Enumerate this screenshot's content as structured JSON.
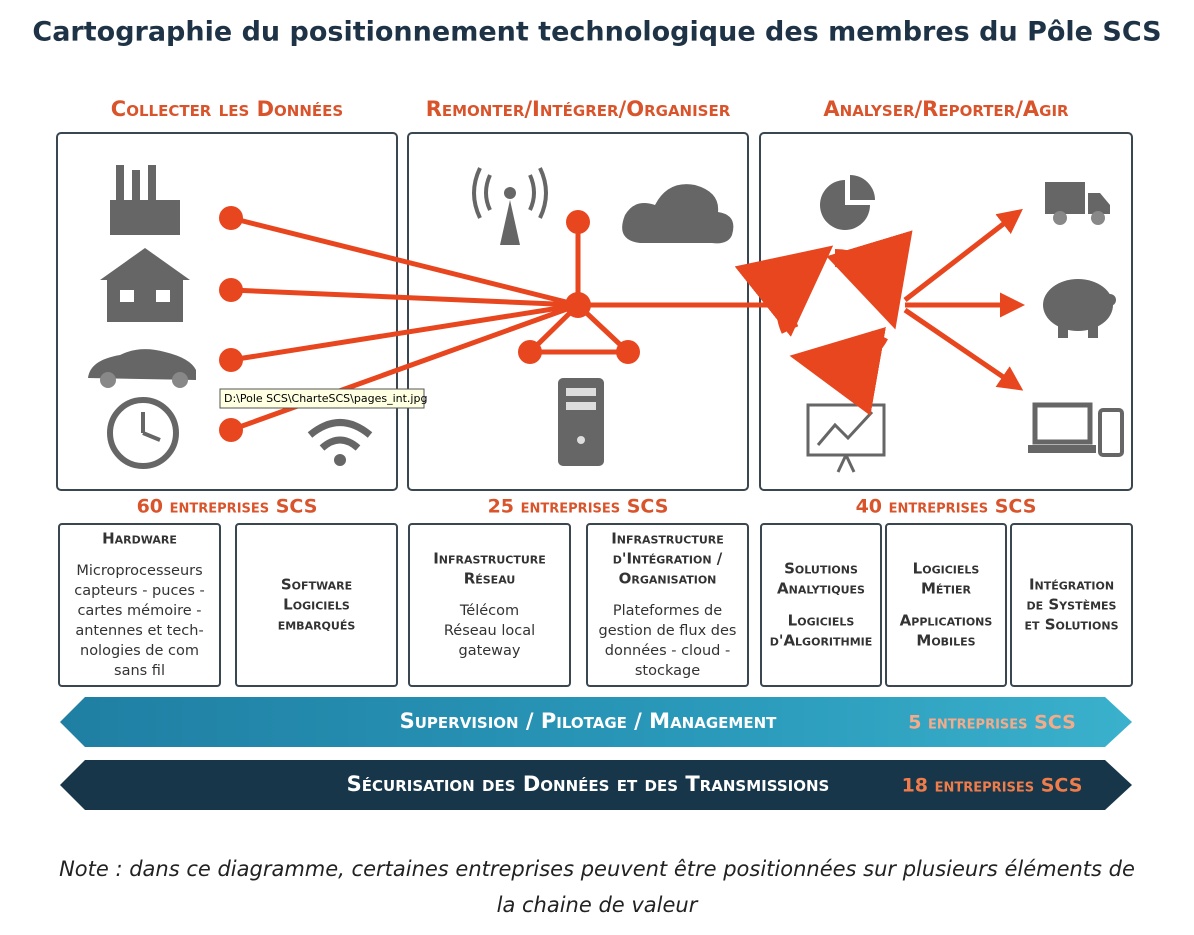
{
  "title": "Cartographie du positionnement technologique des membres du Pôle SCS",
  "columns": [
    {
      "heading": "Collecter les Données",
      "count_label": "60 entreprises SCS"
    },
    {
      "heading": "Remonter/Intégrer/Organiser",
      "count_label": "25 entreprises SCS"
    },
    {
      "heading": "Analyser/Reporter/Agir",
      "count_label": "40 entreprises SCS"
    }
  ],
  "tooltip": "D:\\Pole SCS\\CharteSCS\\pages_int.jpg",
  "boxes": [
    {
      "headings": [
        [
          "Hardware"
        ]
      ],
      "body": [
        "Microprocesseurs",
        "capteurs - puces -",
        "cartes mémoire -",
        "antennes et tech-",
        "nologies de com",
        "sans fil"
      ]
    },
    {
      "headings": [
        [
          "Software",
          "Logiciels",
          "embarqués"
        ]
      ]
    },
    {
      "headings": [
        [
          "Infrastructure",
          "Réseau"
        ]
      ],
      "body": [
        "Télécom",
        "Réseau local",
        "gateway"
      ]
    },
    {
      "headings": [
        [
          "Infrastructure",
          "d'Intégration /",
          "Organisation"
        ]
      ],
      "body": [
        "Plateformes de",
        "gestion de flux des",
        "données - cloud -",
        "stockage"
      ]
    },
    {
      "headings": [
        [
          "Solutions",
          "Analytiques"
        ],
        [
          "Logiciels",
          "d'Algorithmie"
        ]
      ]
    },
    {
      "headings": [
        [
          "Logiciels",
          "Métier"
        ],
        [
          "Applications",
          "Mobiles"
        ]
      ]
    },
    {
      "headings": [
        [
          "Intégration",
          "de Systèmes",
          "et Solutions"
        ]
      ]
    }
  ],
  "bands": [
    {
      "label": "Supervision / Pilotage / Management",
      "count_label": "5 entreprises SCS"
    },
    {
      "label": "Sécurisation des Données et des Transmissions",
      "count_label": "18 entreprises SCS"
    }
  ],
  "note": [
    "Note : dans ce diagramme, certaines entreprises peuvent être positionnées sur plusieurs éléments de",
    "la chaine de valeur"
  ]
}
